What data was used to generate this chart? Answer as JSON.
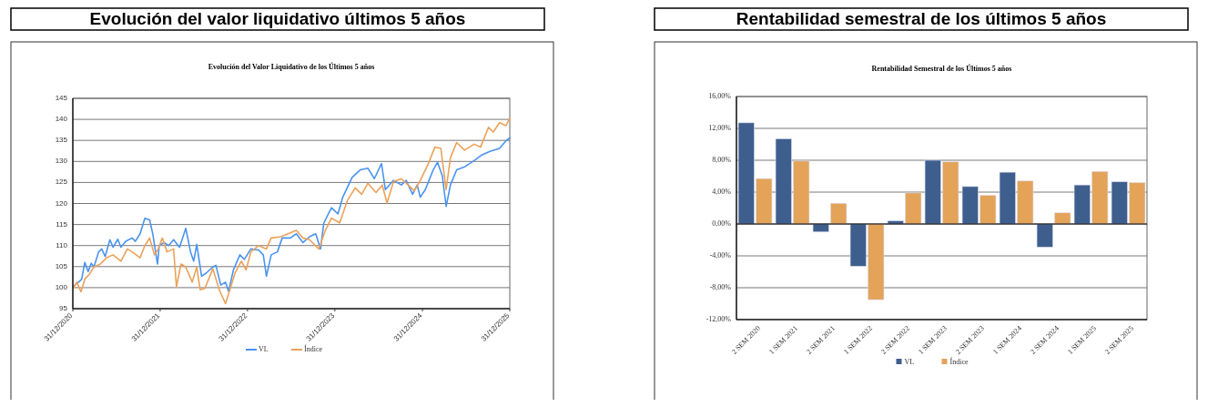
{
  "chart_data": [
    {
      "type": "line",
      "title": "Evolución del valor liquidativo últimos 5 años",
      "subtitle": "Evolución del Valor Liquidativo de los Últimos 5 años",
      "xlim": [
        "2020-12-31",
        "2025-12-31"
      ],
      "xticks": [
        {
          "value": "2020-12-31",
          "label": "31/12/2020"
        },
        {
          "value": "2021-12-31",
          "label": "31/12/2021"
        },
        {
          "value": "2022-12-31",
          "label": "31/12/2022"
        },
        {
          "value": "2023-12-31",
          "label": "31/12/2023"
        },
        {
          "value": "2024-12-31",
          "label": "31/12/2024"
        },
        {
          "value": "2025-12-31",
          "label": "31/12/2025"
        }
      ],
      "ylim": [
        95,
        145
      ],
      "yticks": [
        95,
        100,
        105,
        110,
        115,
        120,
        125,
        130,
        135,
        140,
        145
      ],
      "grid": "y",
      "legend": "bottom",
      "series": [
        {
          "name": "VL",
          "color": "#4a93f0",
          "x": [
            "2020-12-31",
            "2021-01-24",
            "2021-02-06",
            "2021-02-19",
            "2021-03-05",
            "2021-03-18",
            "2021-03-29",
            "2021-04-18",
            "2021-05-01",
            "2021-05-15",
            "2021-06-04",
            "2021-06-17",
            "2021-07-07",
            "2021-07-20",
            "2021-08-09",
            "2021-09-05",
            "2021-09-18",
            "2021-10-08",
            "2021-10-28",
            "2021-11-17",
            "2021-11-30",
            "2021-12-20",
            "2021-12-27",
            "2022-01-16",
            "2022-02-05",
            "2022-02-25",
            "2022-03-22",
            "2022-04-17",
            "2022-05-07",
            "2022-05-20",
            "2022-06-02",
            "2022-06-22",
            "2022-07-12",
            "2022-08-08",
            "2022-08-21",
            "2022-09-10",
            "2022-09-30",
            "2022-10-13",
            "2022-11-02",
            "2022-11-29",
            "2022-12-18",
            "2023-01-14",
            "2023-02-16",
            "2023-03-07",
            "2023-03-20",
            "2023-04-09",
            "2023-05-05",
            "2023-05-25",
            "2023-06-28",
            "2023-07-23",
            "2023-08-20",
            "2023-09-16",
            "2023-10-12",
            "2023-11-01",
            "2023-11-15",
            "2023-12-17",
            "2024-01-13",
            "2024-02-02",
            "2024-03-12",
            "2024-04-15",
            "2024-05-17",
            "2024-06-13",
            "2024-07-13",
            "2024-07-29",
            "2024-09-01",
            "2024-10-04",
            "2024-10-24",
            "2024-11-20",
            "2024-12-09",
            "2024-12-22",
            "2025-01-12",
            "2025-02-14",
            "2025-03-04",
            "2025-03-24",
            "2025-04-09",
            "2025-04-27",
            "2025-05-23",
            "2025-06-25",
            "2025-08-04",
            "2025-09-07",
            "2025-10-09",
            "2025-11-18",
            "2025-12-15",
            "2025-12-31"
          ],
          "values": [
            100.2,
            101.3,
            102,
            106,
            103.8,
            105.8,
            104.9,
            108.5,
            109.2,
            107.4,
            111.4,
            109.6,
            111.5,
            109.6,
            111,
            111.8,
            111,
            112.8,
            116.5,
            116.1,
            112.8,
            105.6,
            110,
            110.7,
            110,
            111.4,
            109.6,
            114.1,
            108.5,
            106.3,
            110.3,
            102.7,
            103.5,
            104.9,
            105.3,
            100.6,
            101.3,
            99.1,
            104.2,
            107.8,
            106.7,
            109.2,
            108.9,
            107.8,
            102.7,
            107.8,
            108.5,
            111.8,
            111.8,
            112.8,
            110.7,
            112.1,
            112.8,
            109.2,
            115.4,
            119,
            117.5,
            121.5,
            126.2,
            128,
            128.4,
            125.9,
            129.5,
            123.3,
            125.5,
            124.4,
            125.5,
            122.2,
            124.4,
            121.5,
            123.3,
            128,
            129.8,
            126.6,
            119.3,
            124.4,
            128,
            128.7,
            130.2,
            131.6,
            132.4,
            133.1,
            134.9,
            135.6
          ]
        },
        {
          "name": "Índice",
          "color": "#eba25a",
          "x": [
            "2020-12-31",
            "2021-01-17",
            "2021-02-03",
            "2021-02-19",
            "2021-03-09",
            "2021-03-29",
            "2021-04-25",
            "2021-05-21",
            "2021-06-17",
            "2021-07-20",
            "2021-08-16",
            "2021-09-05",
            "2021-10-08",
            "2021-10-28",
            "2021-11-17",
            "2021-12-07",
            "2021-12-23",
            "2022-01-09",
            "2022-01-29",
            "2022-02-25",
            "2022-03-09",
            "2022-03-28",
            "2022-04-17",
            "2022-05-14",
            "2022-06-02",
            "2022-06-16",
            "2022-07-06",
            "2022-08-08",
            "2022-09-04",
            "2022-09-30",
            "2022-10-20",
            "2022-11-09",
            "2022-12-05",
            "2022-12-25",
            "2023-01-14",
            "2023-02-16",
            "2023-03-20",
            "2023-04-09",
            "2023-05-19",
            "2023-07-23",
            "2023-08-20",
            "2023-09-16",
            "2023-10-25",
            "2023-11-21",
            "2023-12-17",
            "2024-01-20",
            "2024-02-22",
            "2024-03-25",
            "2024-04-21",
            "2024-05-17",
            "2024-06-20",
            "2024-07-16",
            "2024-08-05",
            "2024-09-01",
            "2024-10-04",
            "2024-11-07",
            "2024-11-27",
            "2024-12-22",
            "2025-01-25",
            "2025-02-21",
            "2025-03-18",
            "2025-04-09",
            "2025-04-27",
            "2025-05-23",
            "2025-06-25",
            "2025-08-04",
            "2025-08-31",
            "2025-10-03",
            "2025-10-23",
            "2025-11-18",
            "2025-12-15",
            "2025-12-31"
          ],
          "values": [
            99.7,
            101.3,
            99,
            102,
            103.1,
            104.9,
            105.6,
            107.1,
            107.8,
            106.3,
            109.2,
            108.5,
            107.1,
            110,
            111.8,
            107.8,
            109.2,
            111.8,
            108.5,
            109.2,
            100.2,
            105.6,
            104.9,
            101.3,
            104.9,
            99.5,
            99.8,
            104.5,
            99.5,
            96.2,
            99.8,
            103.5,
            106.3,
            104.2,
            108.5,
            110,
            109.2,
            111.8,
            112.1,
            113.6,
            111.8,
            111.4,
            109.2,
            113.6,
            116.5,
            115.4,
            120.8,
            123.7,
            122.2,
            124.8,
            122.6,
            124.4,
            120.1,
            125.2,
            125.9,
            124.1,
            123,
            125.5,
            129.5,
            133.4,
            133.1,
            123.3,
            130.9,
            134.5,
            132.7,
            134.1,
            133.4,
            138.1,
            137,
            139.2,
            138.5,
            140.3
          ]
        }
      ]
    },
    {
      "type": "bar",
      "title": "Rentabilidad semestral de los últimos 5 años",
      "subtitle": "Rentabilidad Semestral de los Últimos 5 años",
      "categories": [
        "2 SEM 2020",
        "1 SEM 2021",
        "2 SEM 2021",
        "1 SEM 2022",
        "2 SEM 2022",
        "1 SEM 2023",
        "2 SEM 2023",
        "1 SEM 2024",
        "2 SEM 2024",
        "1 SEM 2025",
        "2 SEM 2025"
      ],
      "ylim": [
        -12,
        16
      ],
      "yticks": [
        {
          "value": -12,
          "label": "-12,00%"
        },
        {
          "value": -8,
          "label": "-8,00%"
        },
        {
          "value": -4,
          "label": "-4,00%"
        },
        {
          "value": 0,
          "label": "0,00%"
        },
        {
          "value": 4,
          "label": "4,00%"
        },
        {
          "value": 8,
          "label": "8,00%"
        },
        {
          "value": 12,
          "label": "12,00%"
        },
        {
          "value": 16,
          "label": "16,00%"
        }
      ],
      "grid": "y",
      "legend": "bottom",
      "series": [
        {
          "name": "VL",
          "color": "#3e5f8e",
          "values": [
            12.7,
            10.7,
            -1.0,
            -5.3,
            0.4,
            8.0,
            4.7,
            6.5,
            -2.9,
            4.9,
            5.3
          ]
        },
        {
          "name": "Índice",
          "color": "#e3a359",
          "values": [
            5.7,
            7.9,
            2.6,
            -9.5,
            3.9,
            7.8,
            3.6,
            5.4,
            1.4,
            6.6,
            5.2
          ]
        }
      ]
    }
  ]
}
